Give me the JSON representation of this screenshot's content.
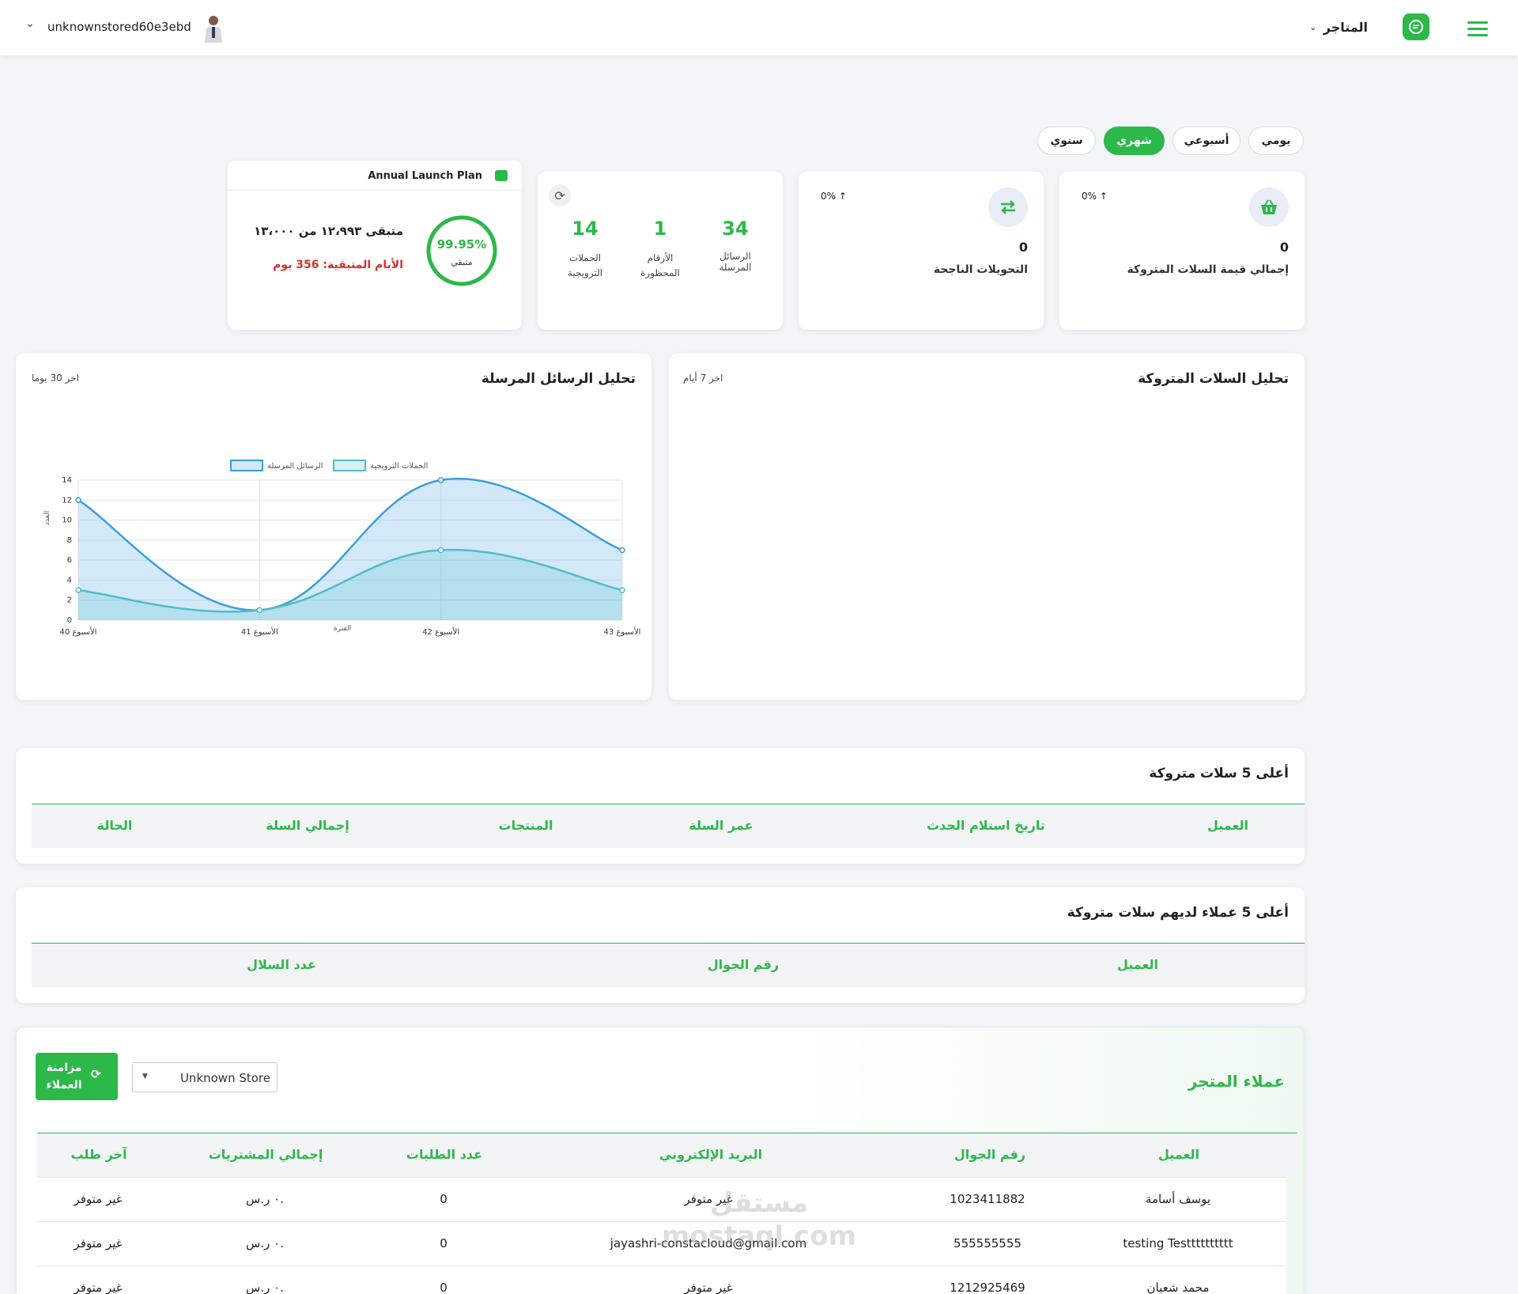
{
  "header": {
    "username": "unknownstored60e3ebd",
    "stores_label": "المتاجر"
  },
  "period_tabs": [
    {
      "label": "يومي",
      "active": false
    },
    {
      "label": "أسبوعي",
      "active": false
    },
    {
      "label": "شهري",
      "active": true
    },
    {
      "label": "سنوي",
      "active": false
    }
  ],
  "stats": {
    "abandoned_total": {
      "value": "0",
      "label": "إجمالي قيمة السلات المتروكة",
      "change": "0%"
    },
    "conversions": {
      "value": "0",
      "label": "التحويلات الناجحة",
      "change": "0%"
    },
    "messages": {
      "sent": {
        "value": "34",
        "label": "الرسائل المرسلة"
      },
      "blocked": {
        "value": "1",
        "label_1": "الأرقام",
        "label_2": "المحظورة"
      },
      "campaigns": {
        "value": "14",
        "label_1": "الحملات",
        "label_2": "الترويجية"
      }
    }
  },
  "plan": {
    "title": "Annual Launch Plan",
    "percent": "99.95%",
    "percent_value": 99.95,
    "percent_label": "متبقي",
    "remaining_text": "متبقى ١٢،٩٩٣ من ١٣،٠٠٠",
    "days_text": "الأيام المتبقية: 356 يوم"
  },
  "messages_panel": {
    "title": "تحليل الرسائل المرسلة",
    "range": "اخر 30 يوما"
  },
  "carts_panel": {
    "title": "تحليل السلات المتروكة",
    "range": "اخر 7 أيام"
  },
  "chart_data": {
    "type": "area",
    "categories": [
      "الأسبوع 40",
      "الأسبوع 41",
      "الأسبوع 42",
      "الأسبوع 43"
    ],
    "series": [
      {
        "name": "الرسائل المرسلة",
        "values": [
          12,
          1,
          14,
          7
        ],
        "color": "#3b9de0"
      },
      {
        "name": "الحملات الترويجية",
        "values": [
          3,
          1,
          7,
          3
        ],
        "color": "#4fbdc9"
      }
    ],
    "ylim": [
      0,
      14
    ],
    "yticks": [
      "0",
      "2",
      "4",
      "6",
      "8",
      "10",
      "12",
      "14"
    ],
    "xlabel": "الفترة",
    "ylabel": "العدد",
    "legend": "top",
    "grid": true
  },
  "top_carts": {
    "title": "أعلى 5 سلات متروكة",
    "columns": [
      "العميل",
      "تاريخ استلام الحدث",
      "عمر السلة",
      "المنتجات",
      "إجمالي السلة",
      "الحالة"
    ]
  },
  "top_customers": {
    "title": "أعلى 5 عملاء لديهم سلات متروكة",
    "columns": [
      "العميل",
      "رقم الجوال",
      "عدد السلال"
    ]
  },
  "store_customers": {
    "title": "عملاء المتجر",
    "store_select": "Unknown Store",
    "sync_label_1": "مزامنة",
    "sync_label_2": "العملاء",
    "columns": [
      "العميل",
      "رقم الجوال",
      "البريد الإلكتروني",
      "عدد الطلبات",
      "إجمالي المشتريات",
      "آخر طلب"
    ],
    "rows": [
      [
        "يوسف أسامة",
        "1023411882",
        "غير متوفر",
        "0",
        "٠ ر.س.",
        "غير متوفر"
      ],
      [
        "testing Testttttttttt",
        "555555555",
        "jayashri-constacloud@gmail.com",
        "0",
        "٠ ر.س.",
        "غير متوفر"
      ],
      [
        "محمد شعبان",
        "1212925469",
        "غير متوفر",
        "0",
        "٠ ر.س.",
        "غير متوفر"
      ]
    ]
  },
  "watermark": "مستقل mostaql.com"
}
